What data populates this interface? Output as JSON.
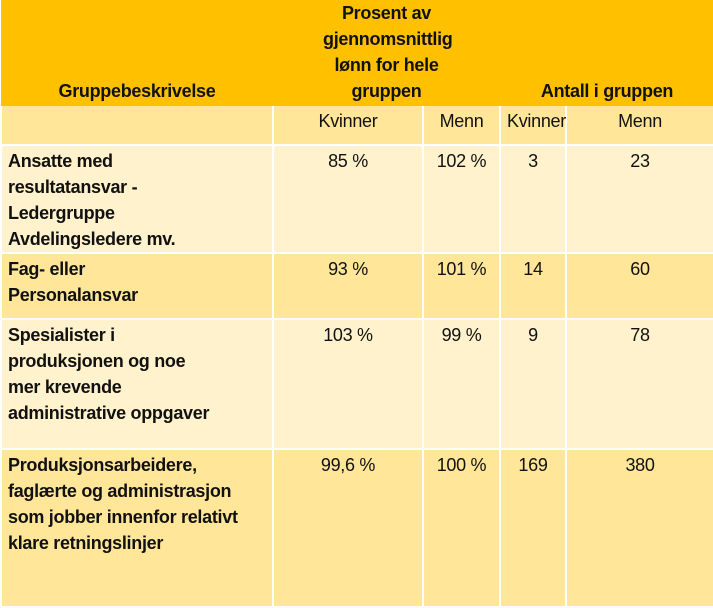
{
  "header": {
    "group": "Gruppebeskrivelse",
    "percent": "Prosent av gjennomsnittlig lønn for hele gruppen",
    "count": "Antall i gruppen"
  },
  "subheader": {
    "pct_women": "Kvinner",
    "pct_men": "Menn",
    "cnt_women": "Kvinner",
    "cnt_men": "Menn"
  },
  "rows": [
    {
      "label": "Ansatte med resultatansvar - Ledergruppe Avdelingsledere mv.",
      "pct_women": "85 %",
      "pct_men": "102 %",
      "cnt_women": "3",
      "cnt_men": "23"
    },
    {
      "label": "Fag- eller Personalansvar",
      "pct_women": "93 %",
      "pct_men": "101 %",
      "cnt_women": "14",
      "cnt_men": "60"
    },
    {
      "label": "Spesialister i produksjonen og noe mer krevende administrative oppgaver",
      "pct_women": "103 %",
      "pct_men": "99 %",
      "cnt_women": "9",
      "cnt_men": "78"
    },
    {
      "label": "Produksjonsarbeidere, faglærte og administrasjon som jobber innenfor relativt klare retningslinjer",
      "pct_women": "99,6 %",
      "pct_men": "100 %",
      "cnt_women": "169",
      "cnt_men": "380"
    }
  ]
}
